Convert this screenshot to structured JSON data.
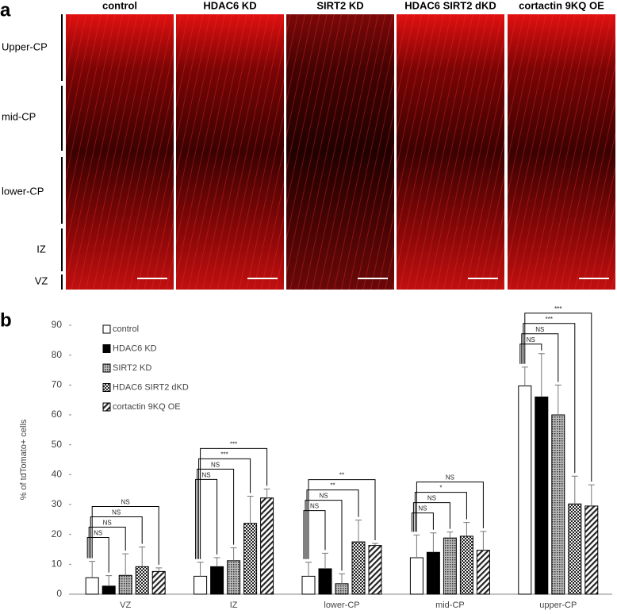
{
  "panel_labels": [
    "a",
    "b"
  ],
  "panel_a": {
    "columns": [
      "control",
      "HDAC6 KD",
      "SIRT2 KD",
      "HDAC6 SIRT2 dKD",
      "cortactin 9KQ OE"
    ],
    "regions": [
      "Upper-CP",
      "mid-CP",
      "lower-CP",
      "IZ",
      "VZ"
    ]
  },
  "chart_data": {
    "type": "bar",
    "y_label": "% of tdTomato+ cells",
    "categories": [
      "VZ",
      "IZ",
      "lower-CP",
      "mid-CP",
      "upper-CP"
    ],
    "series": [
      {
        "name": "control",
        "color": "white",
        "values": [
          5.5,
          6,
          6,
          12.2,
          69.7
        ],
        "errors": [
          5.5,
          4.7,
          4.7,
          7.6,
          6.3
        ]
      },
      {
        "name": "HDAC6 KD",
        "color": "black",
        "values": [
          2.7,
          9.2,
          8.5,
          14,
          66
        ],
        "errors": [
          3.5,
          3,
          5.2,
          6.5,
          14.5
        ]
      },
      {
        "name": "SIRT2 KD",
        "color": "dots",
        "values": [
          6.3,
          11.2,
          3.5,
          18.8,
          60
        ],
        "errors": [
          7.2,
          4.3,
          3.3,
          2,
          10
        ]
      },
      {
        "name": "HDAC6 SIRT2 dKD",
        "color": "checker",
        "values": [
          9.2,
          23.7,
          17.5,
          19.4,
          30.2
        ],
        "errors": [
          6.6,
          9.1,
          7.3,
          4.6,
          9.3
        ]
      },
      {
        "name": "cortactin 9KQ OE",
        "color": "hatch",
        "values": [
          7.6,
          32.2,
          16.3,
          14.7,
          29.5
        ],
        "errors": [
          1.2,
          3,
          0.7,
          6.3,
          7.1
        ]
      }
    ],
    "significance": [
      [
        "NS",
        "NS",
        "NS",
        "NS"
      ],
      [
        "NS",
        "NS",
        "***",
        "***"
      ],
      [
        "NS",
        "NS",
        "**",
        "**"
      ],
      [
        "NS",
        "NS",
        "*",
        "NS"
      ],
      [
        "NS",
        "NS",
        "***",
        "***"
      ]
    ],
    "ylim": [
      0,
      90
    ],
    "yticks": [
      0,
      10,
      20,
      30,
      40,
      50,
      60,
      70,
      80,
      90
    ]
  }
}
